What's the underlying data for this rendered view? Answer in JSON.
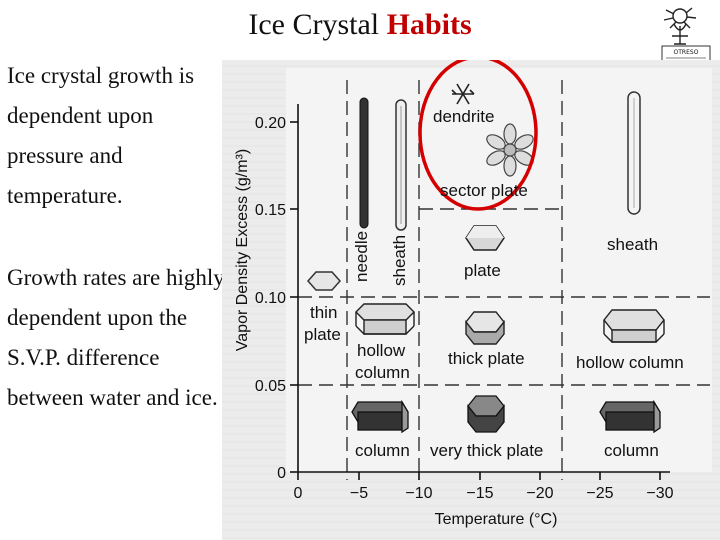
{
  "slide": {
    "title_main": "Ice Crystal ",
    "title_highlight": "Habits",
    "para1": "Ice crystal growth is dependent upon pressure and temperature.",
    "para2": "Growth rates are highly dependent upon the S.V.P. difference between water and ice.",
    "logo_text": "OTRESO",
    "colors": {
      "highlight": "#c00000",
      "circle": "#d40000"
    }
  },
  "diagram": {
    "ylabel": "Vapor Density Excess (g/m³)",
    "xlabel": "Temperature (°C)",
    "y_ticks": [
      "0.20",
      "0.15",
      "0.10",
      "0.05",
      "0"
    ],
    "x_ticks": [
      "0",
      "−5",
      "−10",
      "−15",
      "−20",
      "−25",
      "−30"
    ],
    "habits": {
      "needle": "needle",
      "sheath_mid": "sheath",
      "dendrite": "dendrite",
      "sector_plate": "sector plate",
      "sheath_right": "sheath",
      "thin_plate_1": "thin",
      "thin_plate_2": "plate",
      "plate": "plate",
      "hollow_column_1": "hollow",
      "hollow_column_2": "column",
      "thick_plate": "thick plate",
      "hollow_column_right": "hollow column",
      "column_left": "column",
      "very_thick_plate": "very thick plate",
      "column_right": "column"
    }
  }
}
